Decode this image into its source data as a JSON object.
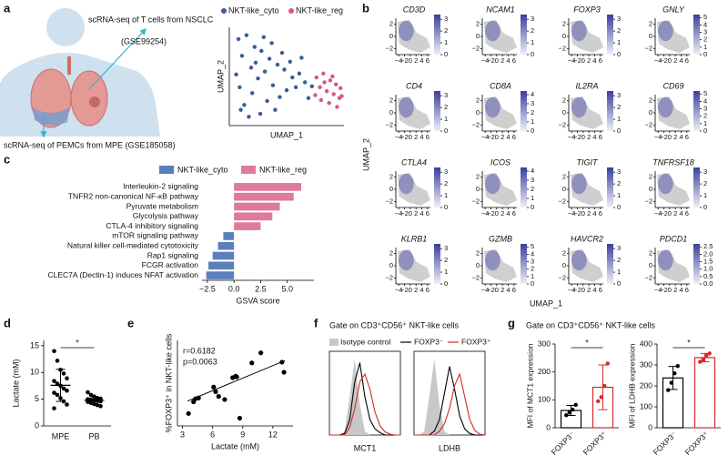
{
  "chart_data": [
    {
      "type": "scatter",
      "panel": "a",
      "annotations": [
        "scRNA-seq of T cells from NSCLC",
        "(GSE99254)",
        "scRNA-seq of PEMCs from MPE  (GSE185058)"
      ],
      "xlabel": "UMAP_1",
      "ylabel": "UMAP_2",
      "xlim": [
        0,
        10
      ],
      "ylim": [
        0,
        10
      ],
      "series": [
        {
          "name": "NKT-like_cyto",
          "color": "#3b5b9a",
          "x": [
            0.8,
            1.5,
            2.2,
            1.1,
            2.8,
            3.5,
            1.9,
            0.6,
            2.5,
            3.1,
            4.2,
            4.8,
            3.8,
            5.5,
            6.1,
            5.0,
            4.4,
            2.0,
            1.3,
            3.3,
            4.0,
            5.8,
            6.6,
            7.2,
            6.9,
            2.7,
            1.7,
            0.9,
            3.0,
            4.6,
            5.3,
            6.3,
            2.3,
            3.7,
            1.0
          ],
          "y": [
            8.8,
            9.2,
            8.0,
            7.1,
            7.6,
            6.8,
            5.9,
            5.2,
            4.8,
            5.5,
            6.2,
            5.7,
            4.1,
            4.9,
            5.3,
            3.6,
            2.9,
            3.3,
            2.1,
            2.5,
            1.6,
            3.9,
            4.4,
            4.0,
            2.8,
            1.2,
            0.9,
            3.9,
            9.0,
            7.4,
            6.5,
            6.9,
            6.4,
            8.4,
            1.6
          ]
        },
        {
          "name": "NKT-like_reg",
          "color": "#d9577f",
          "x": [
            7.6,
            8.2,
            8.8,
            9.3,
            9.7,
            7.9,
            8.5,
            9.1,
            9.6,
            8.0,
            8.7,
            9.4,
            7.5,
            8.3,
            9.0,
            9.8
          ],
          "y": [
            4.9,
            5.3,
            4.6,
            4.2,
            3.8,
            3.9,
            3.5,
            3.2,
            2.8,
            2.6,
            2.3,
            1.9,
            3.1,
            4.4,
            5.0,
            3.0
          ]
        }
      ]
    },
    {
      "type": "feature_plots",
      "panel": "b",
      "xlabel": "UMAP_1",
      "ylabel": "UMAP_2",
      "xlim": [
        -5,
        7
      ],
      "ylim": [
        -3,
        3
      ],
      "xticks": [
        {
          "value": -4,
          "label": "−4"
        },
        {
          "value": -2,
          "label": "−2"
        },
        0,
        2,
        4,
        6
      ],
      "yticks": [
        {
          "value": -2,
          "label": "−2"
        },
        0,
        2
      ],
      "plots": [
        {
          "gene": "CD3D",
          "clim": [
            0,
            3.4
          ],
          "cticks": [
            0,
            1,
            2,
            3
          ]
        },
        {
          "gene": "NCAM1",
          "clim": [
            0,
            3.4
          ],
          "cticks": [
            0,
            1,
            2,
            3
          ]
        },
        {
          "gene": "FOXP3",
          "clim": [
            0,
            3.4
          ],
          "cticks": [
            0,
            1,
            2,
            3
          ]
        },
        {
          "gene": "GNLY",
          "clim": [
            0,
            5.4
          ],
          "cticks": [
            0,
            1,
            2,
            3,
            4,
            5
          ]
        },
        {
          "gene": "CD4",
          "clim": [
            0,
            3.4
          ],
          "cticks": [
            0,
            1,
            2,
            3
          ]
        },
        {
          "gene": "CD8A",
          "clim": [
            0,
            4.4
          ],
          "cticks": [
            0,
            1,
            2,
            3,
            4
          ]
        },
        {
          "gene": "IL2RA",
          "clim": [
            0,
            3.4
          ],
          "cticks": [
            0,
            1,
            2,
            3
          ]
        },
        {
          "gene": "CD69",
          "clim": [
            0,
            5.4
          ],
          "cticks": [
            0,
            1,
            2,
            3,
            4,
            5
          ]
        },
        {
          "gene": "CTLA4",
          "clim": [
            0,
            3.4
          ],
          "cticks": [
            0,
            1,
            2,
            3
          ]
        },
        {
          "gene": "ICOS",
          "clim": [
            0,
            4.4
          ],
          "cticks": [
            0,
            1,
            2,
            3,
            4
          ]
        },
        {
          "gene": "TIGIT",
          "clim": [
            0,
            3.4
          ],
          "cticks": [
            0,
            1,
            2,
            3
          ]
        },
        {
          "gene": "TNFRSF18",
          "clim": [
            0,
            3.4
          ],
          "cticks": [
            0,
            1,
            2,
            3
          ]
        },
        {
          "gene": "KLRB1",
          "clim": [
            0,
            3.4
          ],
          "cticks": [
            0,
            1,
            2,
            3
          ]
        },
        {
          "gene": "GZMB",
          "clim": [
            0,
            5.4
          ],
          "cticks": [
            0,
            1,
            2,
            3,
            4,
            5
          ]
        },
        {
          "gene": "HAVCR2",
          "clim": [
            0,
            3.4
          ],
          "cticks": [
            0,
            1,
            2,
            3
          ]
        },
        {
          "gene": "PDCD1",
          "clim": [
            0,
            2.7
          ],
          "cticks": [
            {
              "value": 0,
              "label": "0.0"
            },
            0.5,
            {
              "value": 1,
              "label": "1.0"
            },
            1.5,
            {
              "value": 2,
              "label": "2.0"
            },
            2.5
          ]
        }
      ]
    },
    {
      "type": "barh",
      "panel": "c",
      "xlabel": "GSVA score",
      "xlim": [
        -3,
        7.5
      ],
      "xticks": [
        {
          "value": -2.5,
          "label": "−2.5"
        },
        {
          "value": 0,
          "label": "0.0"
        },
        2.5,
        {
          "value": 5,
          "label": "5.0"
        }
      ],
      "categories": [
        "Interleukin-2 signaling",
        "TNFR2 non-canonical NF-κB pathway",
        "Pyruvate metabolism",
        "Glycolysis pathway",
        "CTLA-4 inhibitory signaling",
        "mTOR signaling pathway",
        "Natural killer cell-mediated cytotoxicity",
        "Rap1 signaling",
        "FCGR activation",
        "CLEC7A (Dectin-1) induces NFAT activation"
      ],
      "series": [
        {
          "name": "NKT-like_cyto",
          "color": "#5b7fb8",
          "values": [
            null,
            null,
            null,
            null,
            null,
            -1.0,
            -1.5,
            -2.0,
            -2.4,
            -2.6
          ]
        },
        {
          "name": "NKT-like_reg",
          "color": "#e07a9a",
          "values": [
            6.3,
            5.6,
            4.3,
            3.6,
            2.5,
            null,
            null,
            null,
            null,
            null
          ]
        }
      ]
    },
    {
      "type": "dot_plot",
      "panel": "d",
      "ylabel": "Lactate (mM)",
      "ylim": [
        0,
        16
      ],
      "yticks": [
        0,
        5,
        10,
        15
      ],
      "categories": [
        "MPE",
        "PB"
      ],
      "values": [
        [
          14.0,
          12.2,
          10.5,
          9.8,
          8.9,
          8.4,
          7.9,
          7.5,
          7.0,
          6.6,
          6.2,
          5.8,
          5.2,
          4.6,
          4.0,
          3.3
        ],
        [
          6.3,
          5.8,
          5.5,
          5.2,
          5.1,
          5.0,
          4.9,
          4.8,
          4.7,
          4.6,
          4.5,
          4.3,
          4.1,
          3.9,
          3.7
        ]
      ],
      "means": [
        7.6,
        4.8
      ],
      "sds": [
        3.0,
        0.7
      ],
      "significance": "*"
    },
    {
      "type": "scatter",
      "panel": "e",
      "xlabel": "Lactate (mM)",
      "ylabel": "%FOXP3⁺ in NKT-like cells",
      "annotations": [
        "r=0.6182",
        "p=0.0063"
      ],
      "xlim": [
        2.5,
        14
      ],
      "ylim": [
        0,
        11
      ],
      "xticks": [
        3,
        6,
        9,
        12
      ],
      "x": [
        3.6,
        4.1,
        4.3,
        4.6,
        6.1,
        6.3,
        6.6,
        7.2,
        8.0,
        8.3,
        8.7,
        8.4,
        9.9,
        10.8,
        12.9,
        13.1
      ],
      "values": [
        1.6,
        3.1,
        3.5,
        3.6,
        5.0,
        4.4,
        3.8,
        3.4,
        6.2,
        6.4,
        1.0,
        6.3,
        8.1,
        9.4,
        8.2,
        6.9
      ],
      "fit": {
        "x": [
          3.5,
          13.2
        ],
        "y": [
          3.2,
          8.4
        ]
      }
    },
    {
      "type": "density",
      "panel": "f",
      "title": "Gate on CD3⁺CD56⁺ NKT-like cells",
      "xlim": [
        0,
        14
      ],
      "ylim": [
        0,
        1.1
      ],
      "x": [
        0,
        1,
        2,
        3,
        4,
        5,
        6,
        7,
        8,
        9,
        10,
        11,
        12,
        13,
        14
      ],
      "series": [
        {
          "name": "Isotype control",
          "color": "#c8c8c8"
        },
        {
          "name": "FOXP3⁻",
          "color": "#000000"
        },
        {
          "name": "FOXP3⁺",
          "color": "#d62728"
        }
      ],
      "plots": [
        {
          "xlabel": "MCT1",
          "values": [
            [
              0,
              0,
              0,
              0.05,
              0.5,
              1.0,
              0.4,
              0.05,
              0,
              0,
              0,
              0,
              0,
              0,
              0
            ],
            [
              0,
              0,
              0,
              0.02,
              0.2,
              0.7,
              0.95,
              0.5,
              0.2,
              0.08,
              0.03,
              0,
              0,
              0,
              0
            ],
            [
              0,
              0,
              0,
              0,
              0.1,
              0.35,
              0.7,
              0.8,
              0.6,
              0.3,
              0.12,
              0.04,
              0.01,
              0,
              0
            ]
          ]
        },
        {
          "xlabel": "LDHB",
          "values": [
            [
              0,
              0,
              0.05,
              0.5,
              1.0,
              0.4,
              0.05,
              0,
              0,
              0,
              0,
              0,
              0,
              0,
              0
            ],
            [
              0,
              0,
              0,
              0,
              0.05,
              0.2,
              0.55,
              0.9,
              0.6,
              0.25,
              0.08,
              0.02,
              0,
              0,
              0
            ],
            [
              0,
              0,
              0,
              0,
              0,
              0.05,
              0.15,
              0.35,
              0.65,
              0.8,
              0.5,
              0.2,
              0.06,
              0.01,
              0
            ]
          ]
        }
      ]
    },
    {
      "type": "bar_points",
      "panel": "g",
      "title": "Gate on CD3⁺CD56⁺ NKT-like cells",
      "categories": [
        "FOXP3⁻",
        "FOXP3⁺"
      ],
      "colors": [
        "#000000",
        "#d62728"
      ],
      "plots": [
        {
          "ylabel": "MFI of MCT1 expression",
          "ylim": [
            0,
            300
          ],
          "yticks": [
            0,
            100,
            200,
            300
          ],
          "means": [
            62,
            145
          ],
          "sds": [
            18,
            80
          ],
          "values": [
            [
              45,
              55,
              65,
              82
            ],
            [
              95,
              110,
              150,
              230
            ]
          ],
          "significance": "*"
        },
        {
          "ylabel": "MFI of LDHB expression",
          "ylim": [
            0,
            400
          ],
          "yticks": [
            0,
            100,
            200,
            300,
            400
          ],
          "means": [
            238,
            335
          ],
          "sds": [
            55,
            20
          ],
          "values": [
            [
              180,
              215,
              260,
              295
            ],
            [
              315,
              325,
              345,
              355
            ]
          ],
          "significance": "*"
        }
      ]
    }
  ]
}
